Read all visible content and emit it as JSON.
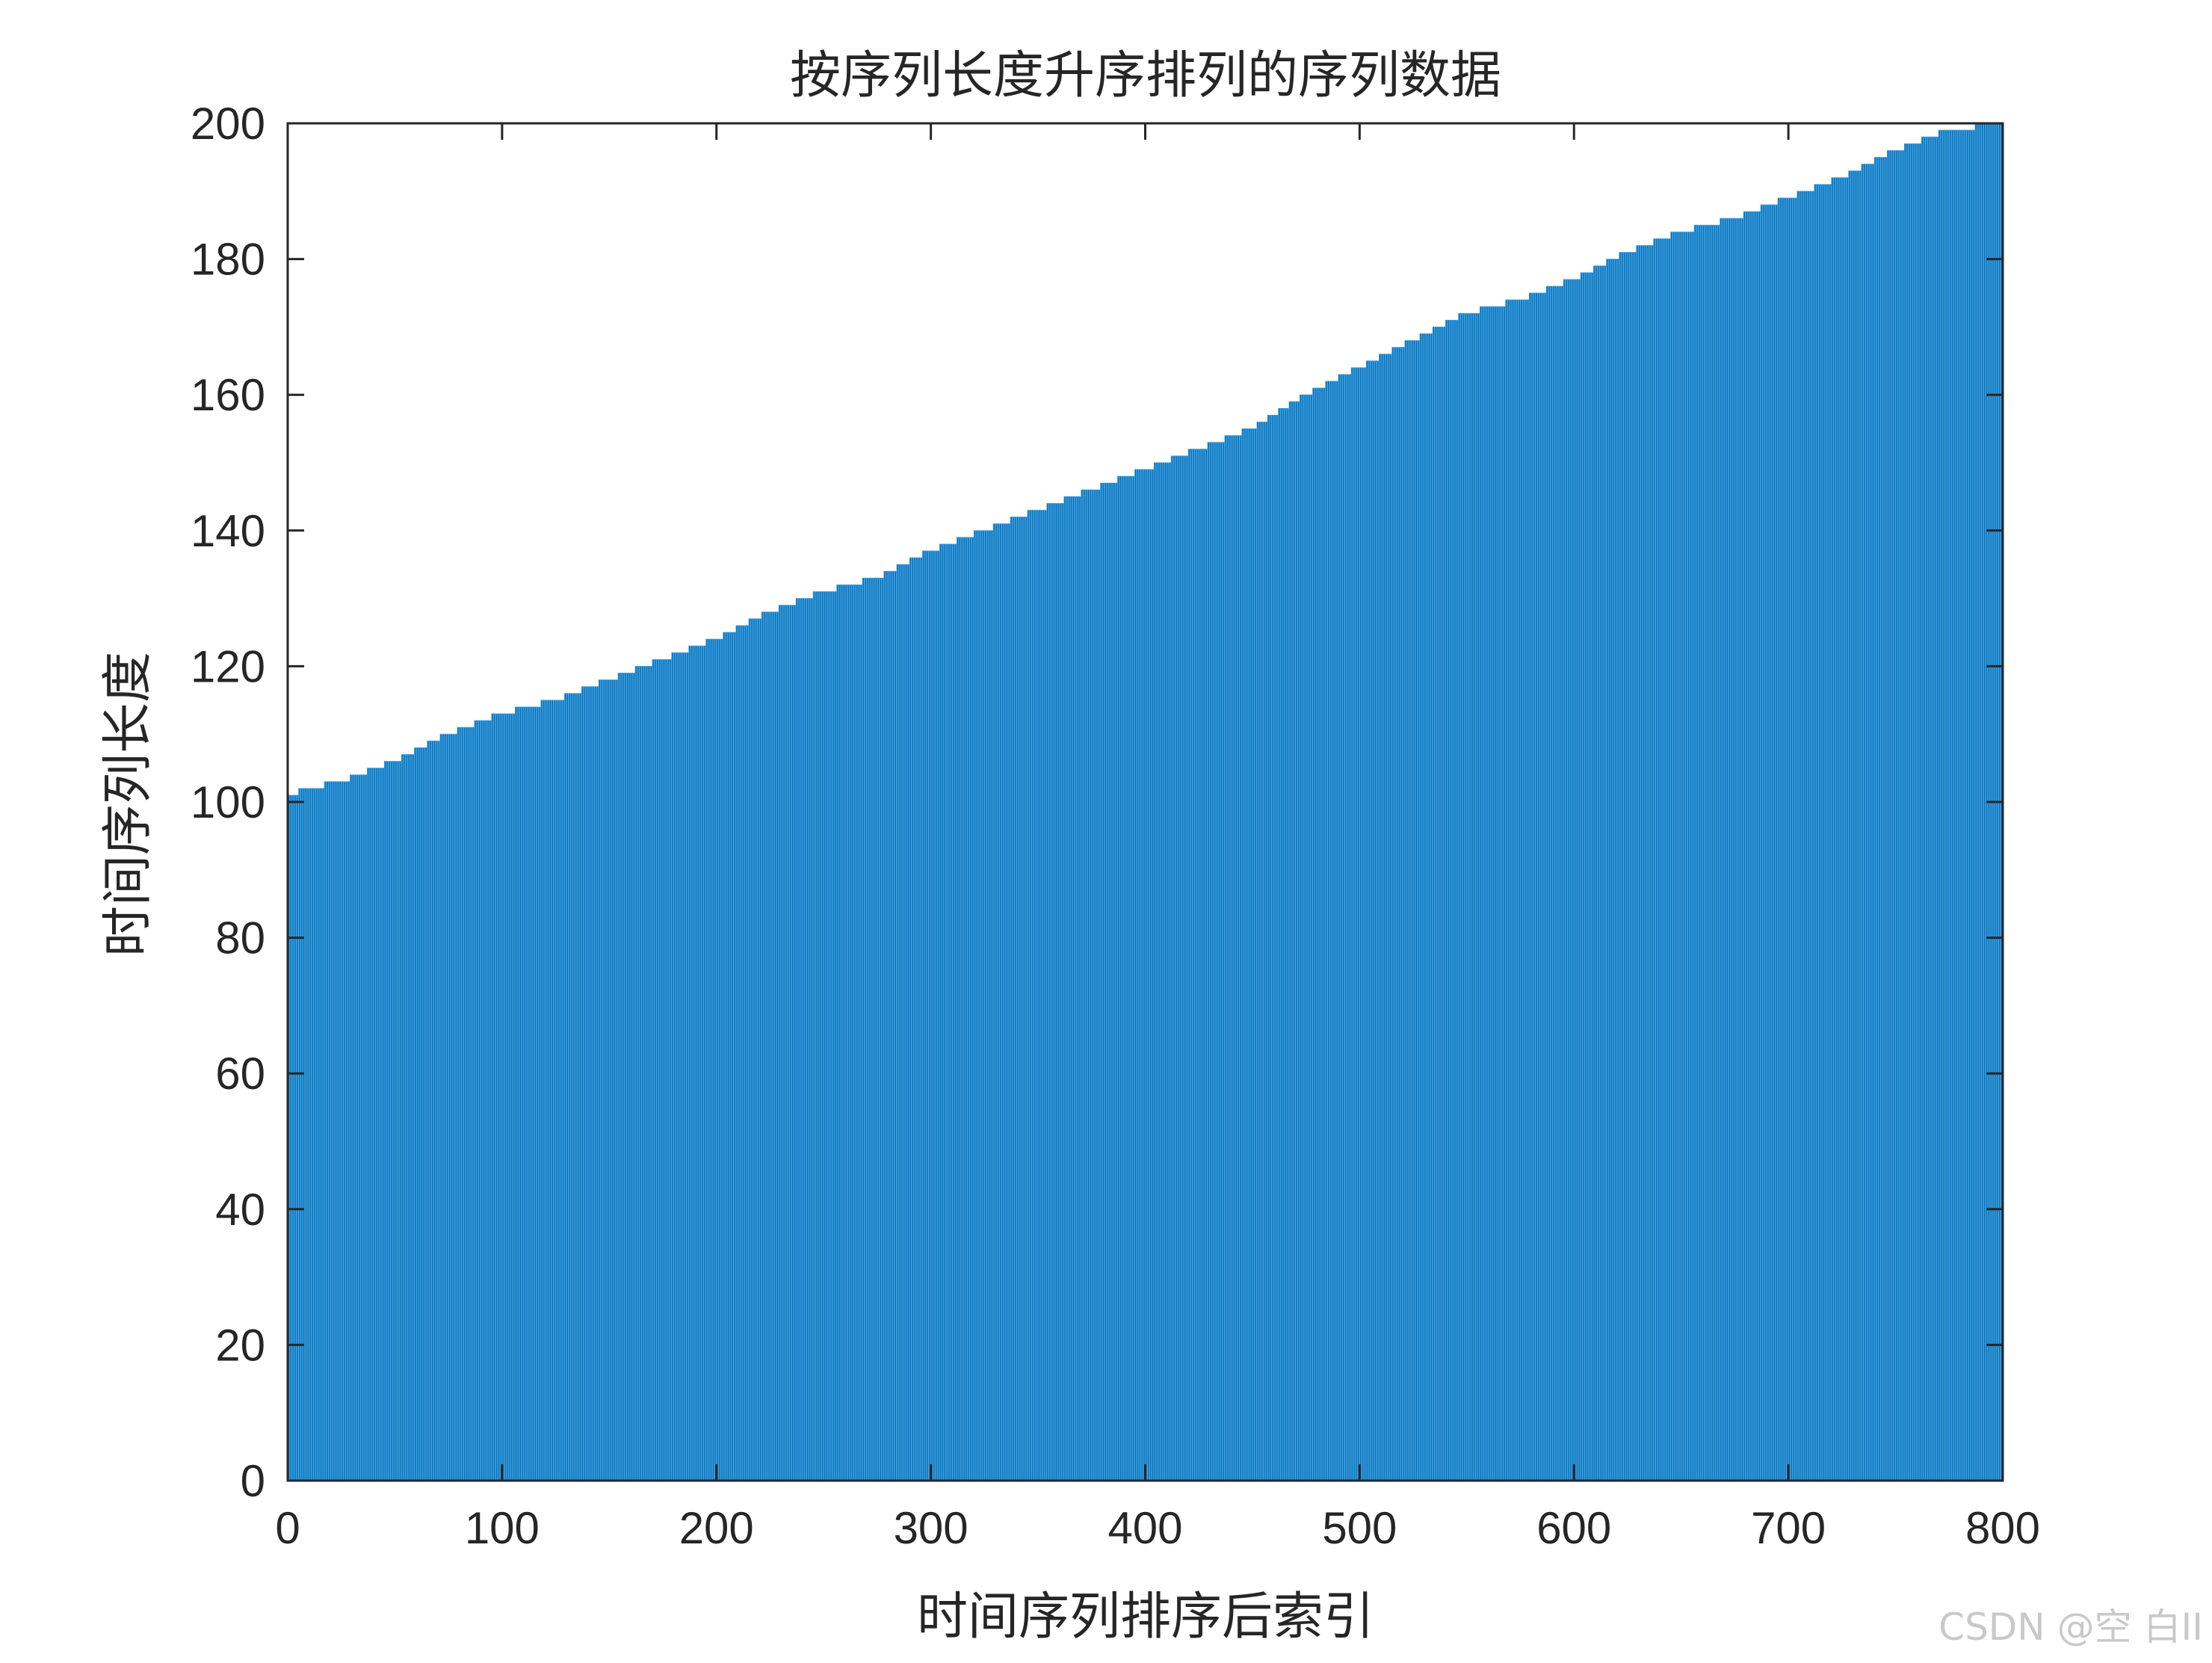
{
  "chart_data": {
    "type": "bar",
    "title": "按序列长度升序排列的序列数据",
    "xlabel": "时间序列排序后索引",
    "ylabel": "时间序列长度",
    "xlim": [
      0,
      800
    ],
    "ylim": [
      0,
      200
    ],
    "xticks": [
      0,
      100,
      200,
      300,
      400,
      500,
      600,
      700,
      800
    ],
    "yticks": [
      0,
      20,
      40,
      60,
      80,
      100,
      120,
      140,
      160,
      180,
      200
    ],
    "grid": false,
    "bar_color": "#0072BD",
    "bar_edge_color": "#4DA3DE",
    "n_bars": 800,
    "sorted_ascending": true,
    "breakpoints": [
      {
        "x": 1,
        "y": 101
      },
      {
        "x": 10,
        "y": 102
      },
      {
        "x": 25,
        "y": 103
      },
      {
        "x": 50,
        "y": 106
      },
      {
        "x": 75,
        "y": 110
      },
      {
        "x": 100,
        "y": 113
      },
      {
        "x": 125,
        "y": 115
      },
      {
        "x": 150,
        "y": 118
      },
      {
        "x": 175,
        "y": 121
      },
      {
        "x": 200,
        "y": 124
      },
      {
        "x": 225,
        "y": 128
      },
      {
        "x": 250,
        "y": 131
      },
      {
        "x": 275,
        "y": 133
      },
      {
        "x": 300,
        "y": 137
      },
      {
        "x": 325,
        "y": 140
      },
      {
        "x": 350,
        "y": 143
      },
      {
        "x": 375,
        "y": 146
      },
      {
        "x": 400,
        "y": 149
      },
      {
        "x": 425,
        "y": 152
      },
      {
        "x": 450,
        "y": 155
      },
      {
        "x": 475,
        "y": 160
      },
      {
        "x": 500,
        "y": 164
      },
      {
        "x": 525,
        "y": 168
      },
      {
        "x": 550,
        "y": 172
      },
      {
        "x": 575,
        "y": 174
      },
      {
        "x": 600,
        "y": 177
      },
      {
        "x": 625,
        "y": 181
      },
      {
        "x": 650,
        "y": 184
      },
      {
        "x": 675,
        "y": 186
      },
      {
        "x": 700,
        "y": 189
      },
      {
        "x": 725,
        "y": 192
      },
      {
        "x": 750,
        "y": 196
      },
      {
        "x": 775,
        "y": 199
      },
      {
        "x": 800,
        "y": 200
      }
    ]
  },
  "watermark": "CSDN @空 白II"
}
